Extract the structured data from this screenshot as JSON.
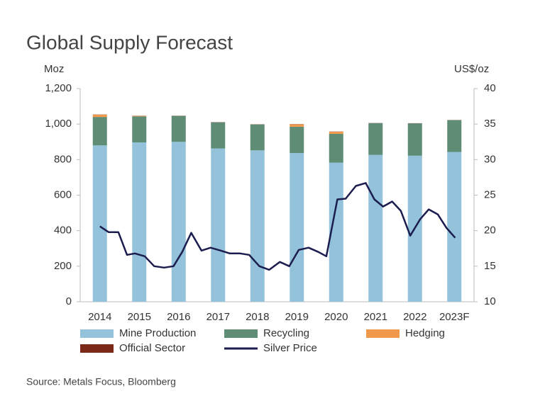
{
  "chart_data": {
    "type": "bar",
    "title": "Global Supply Forecast",
    "y_label": "Moz",
    "y2_label": "US$/oz",
    "source": "Source: Metals Focus, Bloomberg",
    "stacked": true,
    "categories": [
      "2014",
      "2015",
      "2016",
      "2017",
      "2018",
      "2019",
      "2020",
      "2021",
      "2022",
      "2023F"
    ],
    "ylim": [
      0,
      1200
    ],
    "yticks": [
      0,
      200,
      400,
      600,
      800,
      {
        "value": 1000,
        "label": "1,000"
      },
      {
        "value": 1200,
        "label": "1,200"
      }
    ],
    "y2lim": [
      10,
      40
    ],
    "y2ticks": [
      10,
      15,
      20,
      25,
      30,
      35,
      40
    ],
    "series": [
      {
        "name": "Mine Production",
        "color": "#93c2da",
        "values": [
          880,
          897,
          900,
          863,
          852,
          837,
          783,
          827,
          822,
          843
        ]
      },
      {
        "name": "Recycling",
        "color": "#5e8c74",
        "values": [
          160,
          146,
          146,
          147,
          146,
          148,
          162,
          178,
          182,
          179
        ]
      },
      {
        "name": "Hedging",
        "color": "#f0994a",
        "values": [
          13,
          3,
          0,
          0,
          0,
          14,
          12,
          0,
          0,
          0
        ]
      },
      {
        "name": "Official Sector",
        "color": "#7b2a1a",
        "values": [
          1,
          1,
          1,
          1,
          1,
          1,
          1,
          1,
          1,
          1
        ]
      },
      {
        "name": "Silver Price",
        "type": "line",
        "axis": "y2",
        "color": "#1c1d4f",
        "x": [
          2014.0,
          2014.22,
          2014.47,
          2014.69,
          2014.89,
          2015.14,
          2015.38,
          2015.63,
          2015.87,
          2016.09,
          2016.32,
          2016.58,
          2016.81,
          2017.07,
          2017.3,
          2017.56,
          2017.79,
          2018.05,
          2018.3,
          2018.57,
          2018.81,
          2019.05,
          2019.3,
          2019.55,
          2019.75,
          2020.03,
          2020.24,
          2020.5,
          2020.75,
          2020.97,
          2021.19,
          2021.42,
          2021.64,
          2021.88,
          2022.13,
          2022.35,
          2022.58,
          2022.8,
          2023.02
        ],
        "values": [
          20.6,
          19.8,
          19.8,
          16.6,
          16.8,
          16.4,
          15.0,
          14.8,
          15.0,
          17.0,
          19.7,
          17.2,
          17.6,
          17.2,
          16.8,
          16.8,
          16.6,
          15.0,
          14.5,
          15.6,
          15.0,
          17.3,
          17.6,
          17.0,
          16.4,
          24.4,
          24.5,
          26.3,
          26.7,
          24.4,
          23.4,
          24.1,
          22.8,
          19.3,
          21.6,
          23.0,
          22.3,
          20.4,
          19.0
        ]
      }
    ]
  }
}
